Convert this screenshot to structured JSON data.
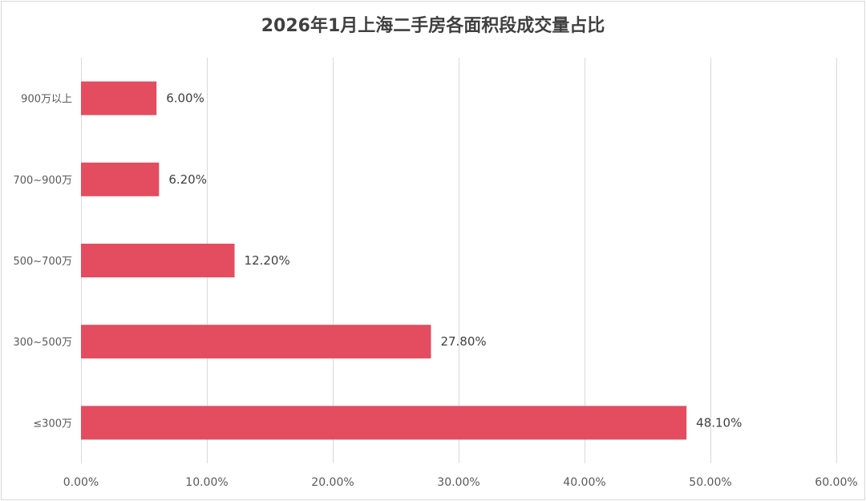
{
  "chart_data": {
    "type": "bar",
    "orientation": "horizontal",
    "title": "2026年1月上海二手房各面积段成交量占比",
    "categories": [
      "≤300万",
      "300~500万",
      "500~700万",
      "700~900万",
      "900万以上"
    ],
    "values": [
      48.1,
      27.8,
      12.2,
      6.2,
      6.0
    ],
    "value_labels": [
      "48.10%",
      "27.80%",
      "12.20%",
      "6.20%",
      "6.00%"
    ],
    "xlim": [
      0,
      60
    ],
    "x_ticks": [
      0,
      10,
      20,
      30,
      40,
      50,
      60
    ],
    "x_tick_labels": [
      "0.00%",
      "10.00%",
      "20.00%",
      "30.00%",
      "40.00%",
      "50.00%",
      "60.00%"
    ],
    "grid": true,
    "legend": "none",
    "bar_color": "#e34d5f",
    "grid_color": "#d9d9d9"
  }
}
